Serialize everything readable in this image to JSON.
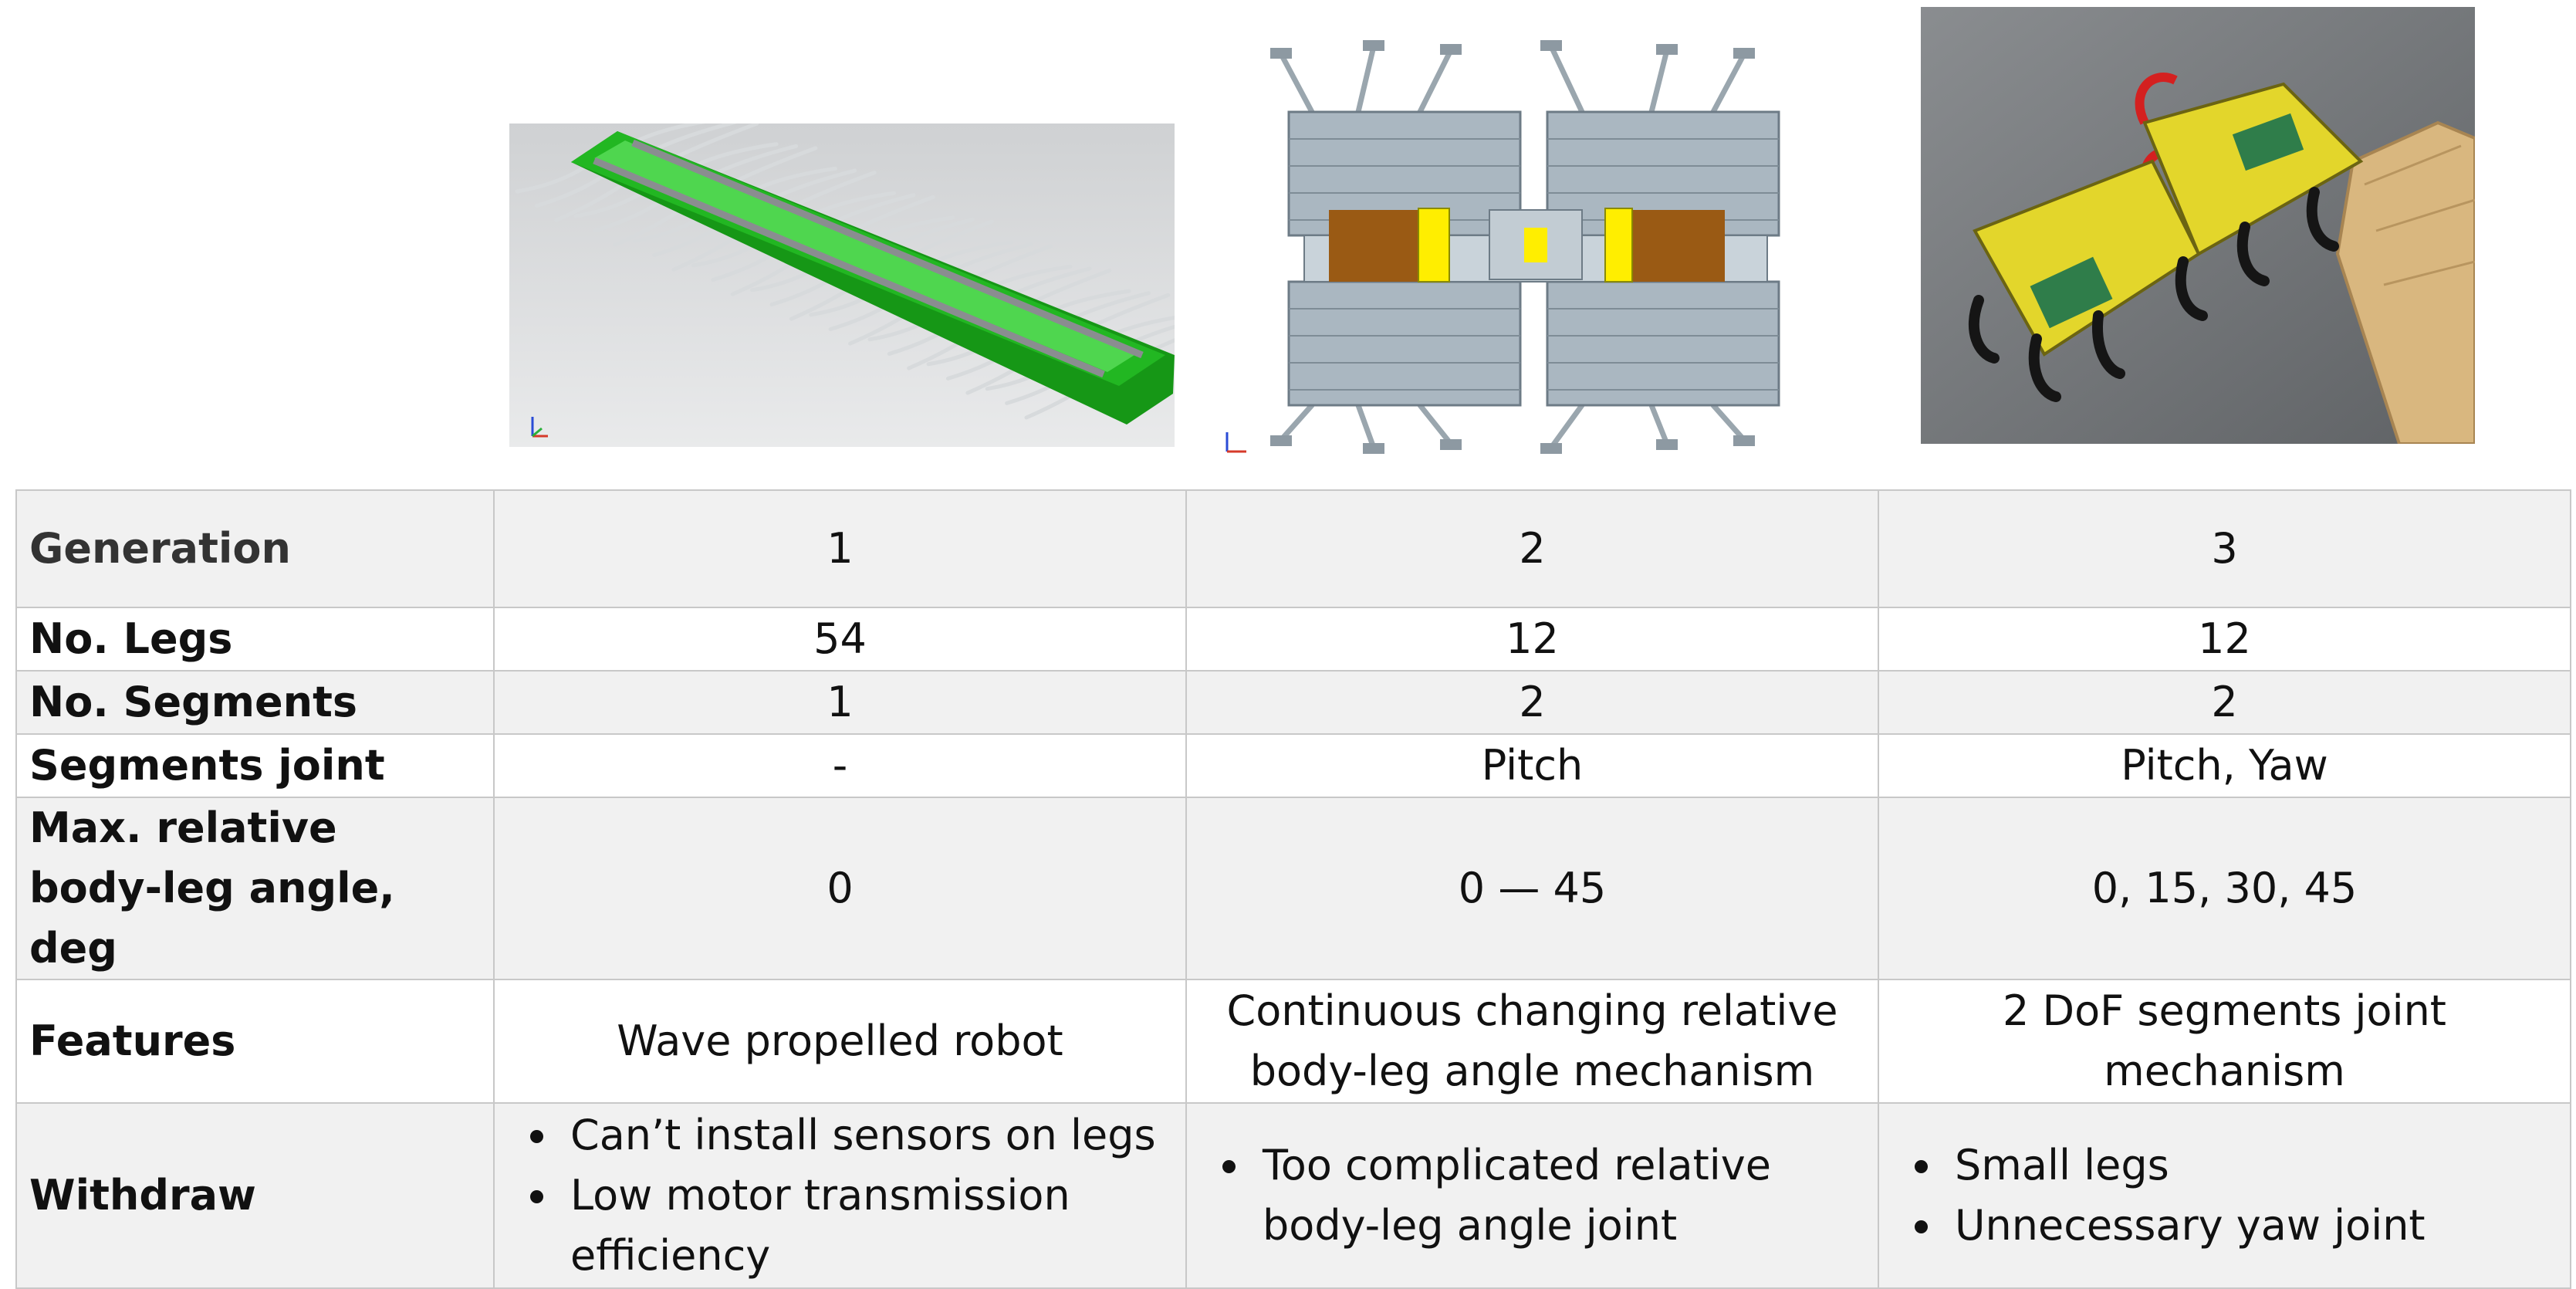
{
  "table": {
    "rows": [
      {
        "label": "Generation",
        "values": [
          "1",
          "2",
          "3"
        ]
      },
      {
        "label": "No. Legs",
        "values": [
          "54",
          "12",
          "12"
        ]
      },
      {
        "label": "No. Segments",
        "values": [
          "1",
          "2",
          "2"
        ]
      },
      {
        "label": "Segments joint",
        "values": [
          "-",
          "Pitch",
          "Pitch, Yaw"
        ]
      },
      {
        "label_lines": [
          "Max. relative",
          "body-leg angle, deg"
        ],
        "values": [
          "0",
          "0 — 45",
          "0, 15, 30, 45"
        ]
      },
      {
        "label": "Features",
        "values": [
          [
            "Wave propelled robot"
          ],
          [
            "Continuous changing relative",
            "body-leg angle mechanism"
          ],
          [
            "2 DoF segments joint",
            "mechanism"
          ]
        ]
      },
      {
        "label": "Withdraw",
        "bullets": [
          [
            "Can’t install sensors on legs",
            "Low motor transmission efficiency"
          ],
          [
            "Too complicated relative body-leg angle joint"
          ],
          [
            "Small legs",
            "Unnecessary yaw joint"
          ]
        ]
      }
    ]
  },
  "colors": {
    "gen1_body": "#1fb31f",
    "gen1_body_inner": "#4bd84b",
    "gen2_frame": "#a9b6c0",
    "gen2_motor": "#9a5a14",
    "gen2_accent": "#ffee00",
    "gen3_body": "#e3d62b",
    "gen3_ground": "#6e7174",
    "table_shade": "#f1f1f1",
    "table_border": "#c8c8c8"
  }
}
